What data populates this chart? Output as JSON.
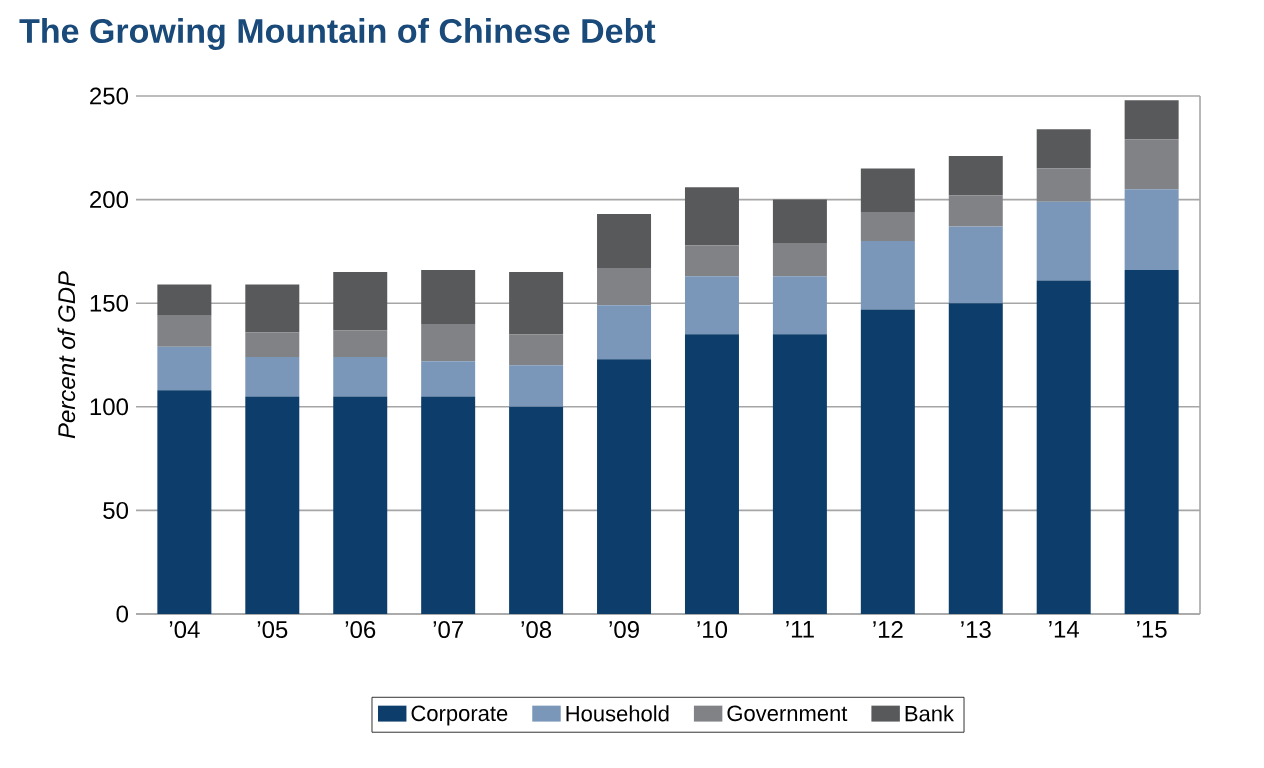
{
  "chart_data": {
    "type": "bar",
    "title": "The Growing Mountain of Chinese Debt",
    "ylabel": "Percent of GDP",
    "stacked": true,
    "categories": [
      "’04",
      "’05",
      "’06",
      "’07",
      "’08",
      "’09",
      "’10",
      "’11",
      "’12",
      "’13",
      "’14",
      "’15"
    ],
    "series": [
      {
        "name": "Corporate",
        "color": "#0d3d6b",
        "values": [
          108,
          105,
          105,
          105,
          100,
          123,
          135,
          135,
          147,
          150,
          161,
          166
        ]
      },
      {
        "name": "Household",
        "color": "#7a96b8",
        "values": [
          21,
          19,
          19,
          17,
          20,
          26,
          28,
          28,
          33,
          37,
          38,
          39
        ]
      },
      {
        "name": "Government",
        "color": "#818285",
        "values": [
          15,
          12,
          13,
          18,
          15,
          18,
          15,
          16,
          14,
          15,
          16,
          24
        ]
      },
      {
        "name": "Bank",
        "color": "#58595b",
        "values": [
          15,
          23,
          28,
          26,
          30,
          26,
          28,
          21,
          21,
          19,
          19,
          19
        ]
      }
    ],
    "ylim": [
      0,
      250
    ],
    "yticks": [
      0,
      50,
      100,
      150,
      200,
      250
    ],
    "grid": "y",
    "legend": "bottom"
  }
}
